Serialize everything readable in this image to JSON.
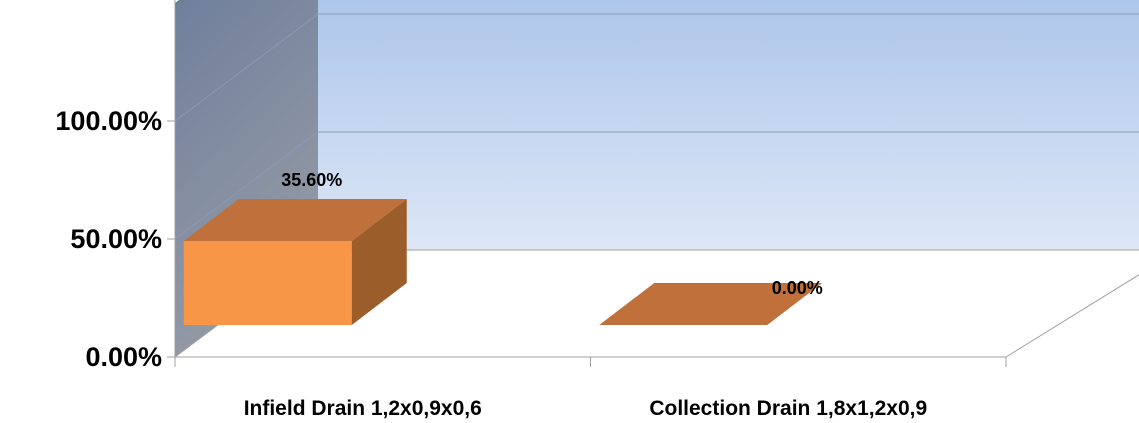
{
  "chart_data": {
    "type": "bar",
    "three_d": true,
    "categories": [
      "Infield Drain 1,2x0,9x0,6",
      "Collection Drain 1,8x1,2x0,9"
    ],
    "values": [
      35.6,
      0.0
    ],
    "data_labels": [
      "35.60%",
      "0.00%"
    ],
    "yticks": [
      "0.00%",
      "50.00%",
      "100.00%"
    ],
    "ytick_values": [
      0,
      50,
      100
    ],
    "ylim": [
      0,
      150
    ],
    "grid": true,
    "legend": "none",
    "colors": {
      "bar_front": "#f79646",
      "bar_top": "#c0703a",
      "bar_side": "#9b5d2a",
      "back_wall_top": "#9ab8e6",
      "back_wall_bottom": "#dde7f6",
      "side_wall_top": "#66789a",
      "side_wall_bottom": "#959ba5",
      "gridline": "#8a9ab5",
      "axis": "#a0a0a0"
    }
  }
}
